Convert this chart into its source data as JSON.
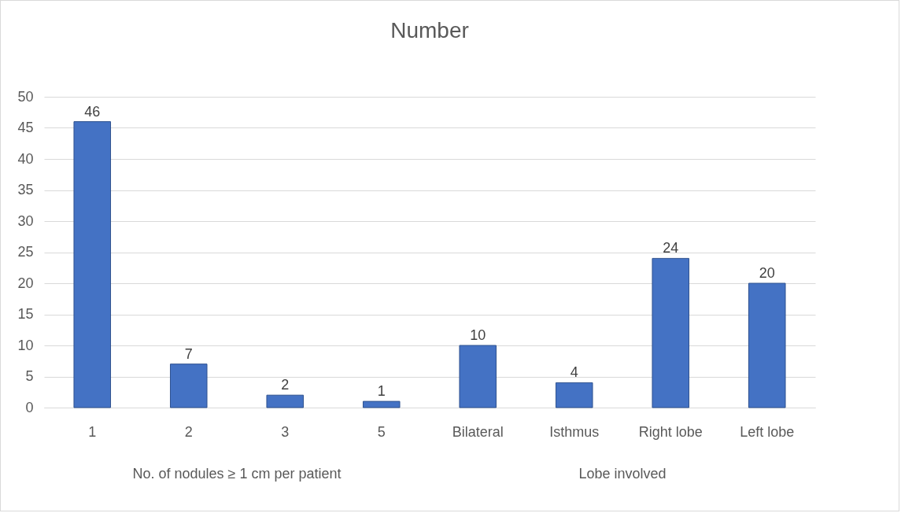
{
  "chart_data": {
    "type": "bar",
    "title": "Number",
    "categories": [
      "1",
      "2",
      "3",
      "5",
      "Bilateral",
      "Isthmus",
      "Right lobe",
      "Left lobe"
    ],
    "values": [
      46,
      7,
      2,
      1,
      10,
      4,
      24,
      20
    ],
    "color": "#4472c4",
    "ylim": [
      0,
      50
    ],
    "yticks": [
      0,
      5,
      10,
      15,
      20,
      25,
      30,
      35,
      40,
      45,
      50
    ],
    "grid": "y",
    "data_labels": true,
    "annotations": [
      "No. of nodules ≥ 1 cm per patient",
      "Lobe involved"
    ]
  }
}
